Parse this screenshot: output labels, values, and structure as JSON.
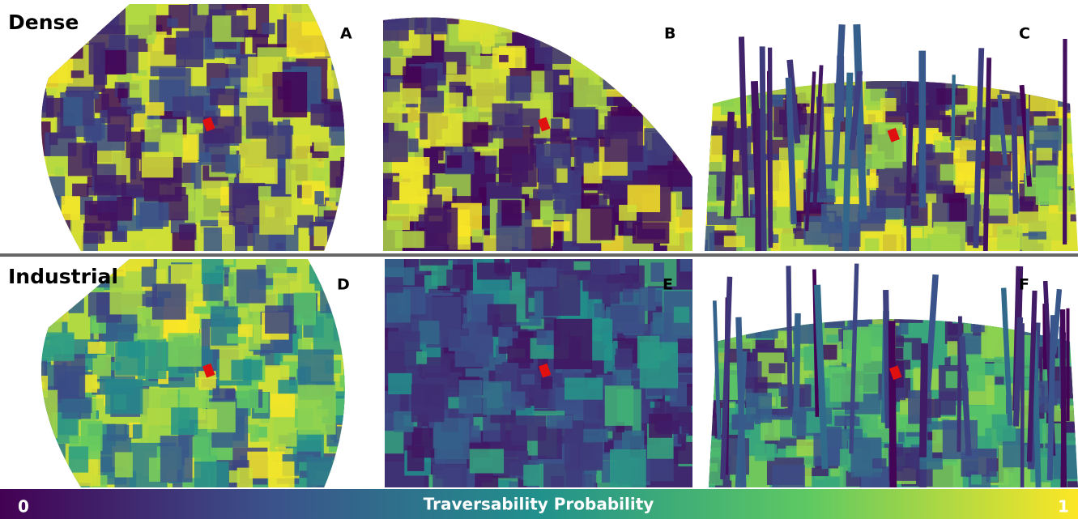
{
  "row_labels": [
    "Dense",
    "Industrial"
  ],
  "panels": [
    {
      "label": "A"
    },
    {
      "label": "B"
    },
    {
      "label": "C"
    },
    {
      "label": "D"
    },
    {
      "label": "E"
    },
    {
      "label": "F"
    }
  ],
  "colorbar": {
    "label": "Traversability Probability",
    "ticks": [
      0,
      1
    ]
  }
}
